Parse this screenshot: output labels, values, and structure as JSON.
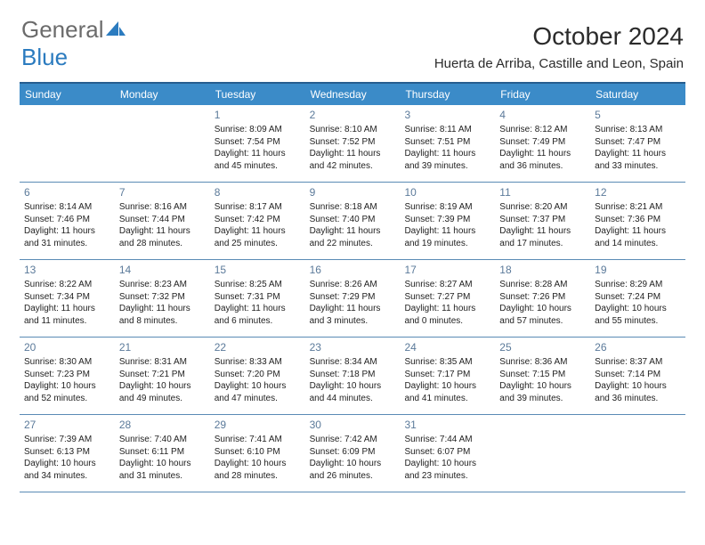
{
  "brand": {
    "word1": "General",
    "word2": "Blue"
  },
  "title": "October 2024",
  "location": "Huerta de Arriba, Castille and Leon, Spain",
  "colors": {
    "header_blue": "#3b8bc8",
    "rule_blue": "#265d8f",
    "logo_gray": "#6b6b6b",
    "logo_blue": "#2b7bbf",
    "daynum": "#5b7a9a"
  },
  "weekdays": [
    "Sunday",
    "Monday",
    "Tuesday",
    "Wednesday",
    "Thursday",
    "Friday",
    "Saturday"
  ],
  "weeks": [
    [
      null,
      null,
      {
        "n": "1",
        "sr": "8:09 AM",
        "ss": "7:54 PM",
        "dl": "11 hours and 45 minutes."
      },
      {
        "n": "2",
        "sr": "8:10 AM",
        "ss": "7:52 PM",
        "dl": "11 hours and 42 minutes."
      },
      {
        "n": "3",
        "sr": "8:11 AM",
        "ss": "7:51 PM",
        "dl": "11 hours and 39 minutes."
      },
      {
        "n": "4",
        "sr": "8:12 AM",
        "ss": "7:49 PM",
        "dl": "11 hours and 36 minutes."
      },
      {
        "n": "5",
        "sr": "8:13 AM",
        "ss": "7:47 PM",
        "dl": "11 hours and 33 minutes."
      }
    ],
    [
      {
        "n": "6",
        "sr": "8:14 AM",
        "ss": "7:46 PM",
        "dl": "11 hours and 31 minutes."
      },
      {
        "n": "7",
        "sr": "8:16 AM",
        "ss": "7:44 PM",
        "dl": "11 hours and 28 minutes."
      },
      {
        "n": "8",
        "sr": "8:17 AM",
        "ss": "7:42 PM",
        "dl": "11 hours and 25 minutes."
      },
      {
        "n": "9",
        "sr": "8:18 AM",
        "ss": "7:40 PM",
        "dl": "11 hours and 22 minutes."
      },
      {
        "n": "10",
        "sr": "8:19 AM",
        "ss": "7:39 PM",
        "dl": "11 hours and 19 minutes."
      },
      {
        "n": "11",
        "sr": "8:20 AM",
        "ss": "7:37 PM",
        "dl": "11 hours and 17 minutes."
      },
      {
        "n": "12",
        "sr": "8:21 AM",
        "ss": "7:36 PM",
        "dl": "11 hours and 14 minutes."
      }
    ],
    [
      {
        "n": "13",
        "sr": "8:22 AM",
        "ss": "7:34 PM",
        "dl": "11 hours and 11 minutes."
      },
      {
        "n": "14",
        "sr": "8:23 AM",
        "ss": "7:32 PM",
        "dl": "11 hours and 8 minutes."
      },
      {
        "n": "15",
        "sr": "8:25 AM",
        "ss": "7:31 PM",
        "dl": "11 hours and 6 minutes."
      },
      {
        "n": "16",
        "sr": "8:26 AM",
        "ss": "7:29 PM",
        "dl": "11 hours and 3 minutes."
      },
      {
        "n": "17",
        "sr": "8:27 AM",
        "ss": "7:27 PM",
        "dl": "11 hours and 0 minutes."
      },
      {
        "n": "18",
        "sr": "8:28 AM",
        "ss": "7:26 PM",
        "dl": "10 hours and 57 minutes."
      },
      {
        "n": "19",
        "sr": "8:29 AM",
        "ss": "7:24 PM",
        "dl": "10 hours and 55 minutes."
      }
    ],
    [
      {
        "n": "20",
        "sr": "8:30 AM",
        "ss": "7:23 PM",
        "dl": "10 hours and 52 minutes."
      },
      {
        "n": "21",
        "sr": "8:31 AM",
        "ss": "7:21 PM",
        "dl": "10 hours and 49 minutes."
      },
      {
        "n": "22",
        "sr": "8:33 AM",
        "ss": "7:20 PM",
        "dl": "10 hours and 47 minutes."
      },
      {
        "n": "23",
        "sr": "8:34 AM",
        "ss": "7:18 PM",
        "dl": "10 hours and 44 minutes."
      },
      {
        "n": "24",
        "sr": "8:35 AM",
        "ss": "7:17 PM",
        "dl": "10 hours and 41 minutes."
      },
      {
        "n": "25",
        "sr": "8:36 AM",
        "ss": "7:15 PM",
        "dl": "10 hours and 39 minutes."
      },
      {
        "n": "26",
        "sr": "8:37 AM",
        "ss": "7:14 PM",
        "dl": "10 hours and 36 minutes."
      }
    ],
    [
      {
        "n": "27",
        "sr": "7:39 AM",
        "ss": "6:13 PM",
        "dl": "10 hours and 34 minutes."
      },
      {
        "n": "28",
        "sr": "7:40 AM",
        "ss": "6:11 PM",
        "dl": "10 hours and 31 minutes."
      },
      {
        "n": "29",
        "sr": "7:41 AM",
        "ss": "6:10 PM",
        "dl": "10 hours and 28 minutes."
      },
      {
        "n": "30",
        "sr": "7:42 AM",
        "ss": "6:09 PM",
        "dl": "10 hours and 26 minutes."
      },
      {
        "n": "31",
        "sr": "7:44 AM",
        "ss": "6:07 PM",
        "dl": "10 hours and 23 minutes."
      },
      null,
      null
    ]
  ],
  "labels": {
    "sunrise": "Sunrise:",
    "sunset": "Sunset:",
    "daylight": "Daylight:"
  }
}
